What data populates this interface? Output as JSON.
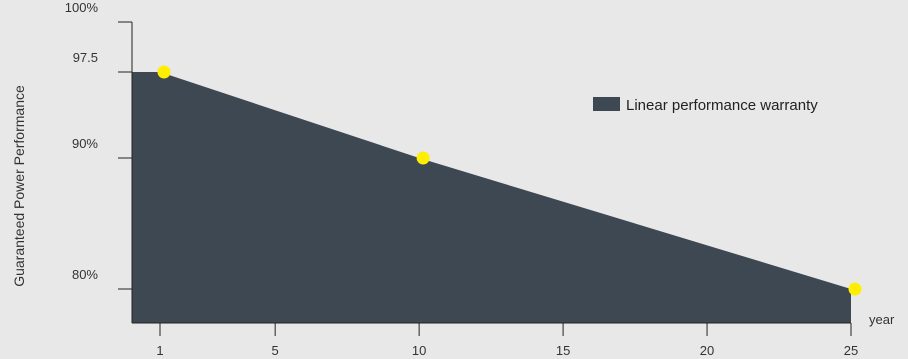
{
  "chart_data": {
    "type": "area",
    "title": "",
    "xlabel": "year",
    "ylabel": "Guaranteed Power Performance",
    "legend": "Linear performance warranty",
    "legend_placement": "top-right",
    "x": [
      1,
      10,
      25
    ],
    "values": [
      97.5,
      90,
      80
    ],
    "x_ticks": [
      1,
      5,
      10,
      15,
      20,
      25
    ],
    "x_tick_labels": [
      "1",
      "5",
      "10",
      "15",
      "20",
      "25"
    ],
    "y_ticks": [
      80,
      90,
      97.5,
      100
    ],
    "y_tick_labels": [
      "80%",
      "90%",
      "97.5",
      "100%"
    ],
    "fill_color": "#3d4852",
    "marker_color": "#ffee00",
    "grid": false
  }
}
